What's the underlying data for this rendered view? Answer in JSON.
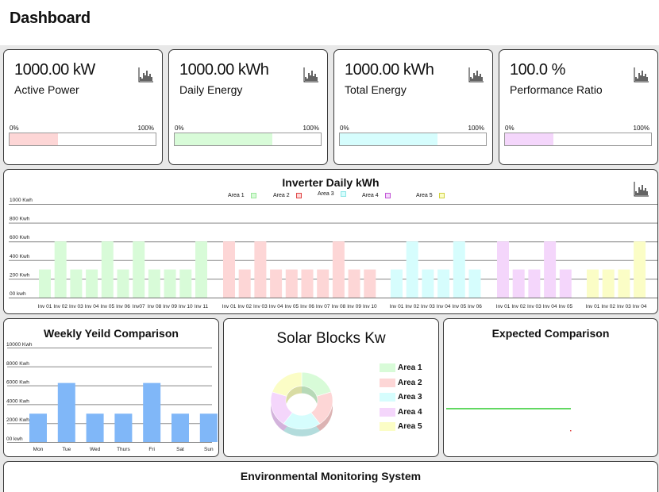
{
  "page_title": "Dashboard",
  "kpis": [
    {
      "value": "1000.00 kW",
      "label": "Active Power",
      "min": "0%",
      "max": "100%",
      "fill": 0.33,
      "color": "#fdd6d6"
    },
    {
      "value": "1000.00 kWh",
      "label": "Daily Energy",
      "min": "0%",
      "max": "100%",
      "fill": 0.67,
      "color": "#d8fbd8"
    },
    {
      "value": "1000.00 kWh",
      "label": "Total Energy",
      "min": "0%",
      "max": "100%",
      "fill": 0.67,
      "color": "#d6fdfd"
    },
    {
      "value": "100.0 %",
      "label": "Performance Ratio",
      "min": "0%",
      "max": "100%",
      "fill": 0.33,
      "color": "#f4d6fb"
    }
  ],
  "inverter_chart": {
    "title": "Inverter Daily kWh",
    "y_ticks": [
      "1000 Kwh",
      "800 Kwh",
      "600 Kwh",
      "400 Kwh",
      "200 Kwh",
      "00 kwh"
    ],
    "areas": [
      {
        "name": "Area 1",
        "color": "#d8fbd8",
        "stroke": "#9be59b"
      },
      {
        "name": "Area 2",
        "color": "#fdd6d6",
        "stroke": "#e04545"
      },
      {
        "name": "Area 3",
        "color": "#d6fdfd",
        "stroke": "#8ee6e6"
      },
      {
        "name": "Area 4",
        "color": "#f4d6fb",
        "stroke": "#c255d6"
      },
      {
        "name": "Area 5",
        "color": "#fbfdc6",
        "stroke": "#d0d040"
      }
    ]
  },
  "chart_data": [
    {
      "type": "bar",
      "title": "Inverter Daily kWh",
      "ylim": [
        0,
        1000
      ],
      "y_unit": "Kwh",
      "series": [
        {
          "name": "Area 1",
          "categories": [
            "Inv 01",
            "Inv 02",
            "Inv 03",
            "Inv 04",
            "Inv 05",
            "Inv 06",
            "Inv07",
            "Inv 08",
            "Inv 09",
            "Inv 10",
            "Inv 11"
          ],
          "values": [
            300,
            600,
            300,
            300,
            600,
            300,
            600,
            300,
            300,
            300,
            600
          ]
        },
        {
          "name": "Area 2",
          "categories": [
            "Inv 01",
            "Inv 02",
            "Inv 03",
            "Inv 04",
            "Inv 05",
            "Inv 06",
            "Inv 07",
            "Inv 08",
            "Inv 09",
            "Inv 10"
          ],
          "values": [
            600,
            300,
            600,
            300,
            300,
            300,
            300,
            600,
            300,
            300
          ]
        },
        {
          "name": "Area 3",
          "categories": [
            "Inv 01",
            "Inv 02",
            "Inv 03",
            "Inv 04",
            "Inv 05",
            "Inv 06"
          ],
          "values": [
            300,
            600,
            300,
            300,
            600,
            300
          ]
        },
        {
          "name": "Area 4",
          "categories": [
            "Inv 01",
            "Inv 02",
            "Inv 03",
            "Inv 04",
            "Inv 05"
          ],
          "values": [
            600,
            300,
            300,
            600,
            300
          ]
        },
        {
          "name": "Area 5",
          "categories": [
            "Inv 01",
            "Inv 02",
            "Inv 03",
            "Inv 04"
          ],
          "values": [
            300,
            300,
            300,
            600
          ]
        }
      ]
    },
    {
      "type": "bar",
      "title": "Weekly Yeild Comparison",
      "categories": [
        "Mon",
        "Tue",
        "Wed",
        "Thurs",
        "Fri",
        "Sat",
        "Sun"
      ],
      "values": [
        3000,
        6250,
        3000,
        3000,
        6250,
        3000,
        3000
      ],
      "y_ticks": [
        "10000 Kwh",
        "8000 Kwh",
        "6000 Kwh",
        "4000 Kwh",
        "2000 Kwh",
        "00 kwh"
      ],
      "ylim": [
        0,
        10000
      ],
      "color": "#80b7f8"
    },
    {
      "type": "pie",
      "title": "Solar Blocks Kw",
      "categories": [
        "Area 1",
        "Area 2",
        "Area 3",
        "Area 4",
        "Area 5"
      ],
      "values": [
        20,
        20,
        20,
        20,
        20
      ],
      "colors": [
        "#d8fbd8",
        "#fdd6d6",
        "#d6fdfd",
        "#f4d6fb",
        "#fbfdc6"
      ]
    },
    {
      "type": "line",
      "title": "Expected Comparison",
      "series": [
        {
          "values": [
            1,
            1
          ]
        }
      ],
      "color": "#2ecc2e"
    }
  ],
  "environment": {
    "title": "Environmental Monitoring System"
  }
}
